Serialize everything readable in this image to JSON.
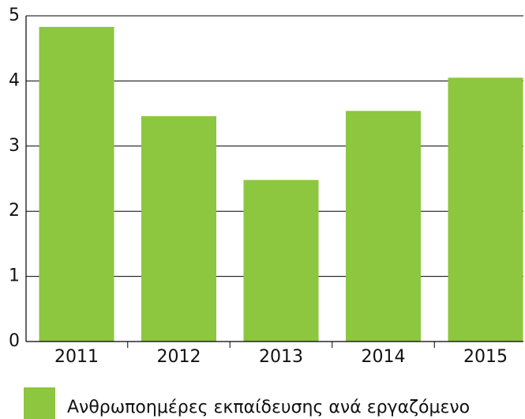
{
  "chart_data": {
    "type": "bar",
    "categories": [
      "2011",
      "2012",
      "2013",
      "2014",
      "2015"
    ],
    "series": [
      {
        "name": "Ανθρωποημέρες εκπαίδευσης ανά εργαζόμενο",
        "color": "#8dc63f",
        "values": [
          4.83,
          3.46,
          2.48,
          3.54,
          4.05
        ]
      }
    ],
    "ylim": [
      0,
      5
    ],
    "yticks": [
      0,
      1,
      2,
      3,
      4,
      5
    ],
    "grid": true,
    "legend": "bottom"
  }
}
